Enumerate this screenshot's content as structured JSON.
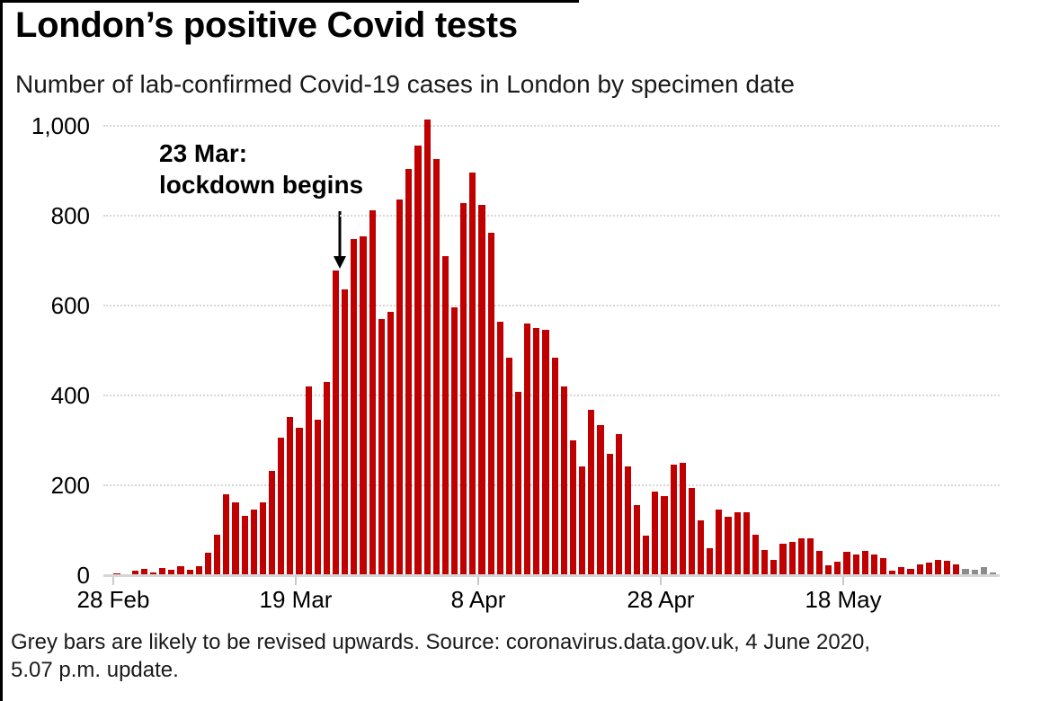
{
  "page": {
    "title": "London’s positive Covid tests",
    "subtitle": "Number of lab-confirmed Covid-19 cases in London by specimen date",
    "footer_lines": [
      "Grey bars are likely to be revised upwards. Source: coronavirus.data.gov.uk, 4 June 2020,",
      "5.07 p.m. update."
    ]
  },
  "chart_data": {
    "type": "bar",
    "title": "London’s positive Covid tests",
    "subtitle": "Number of lab-confirmed Covid-19 cases in London by specimen date",
    "x_dates": [
      "28 Feb",
      "29 Feb",
      "1 Mar",
      "2 Mar",
      "3 Mar",
      "4 Mar",
      "5 Mar",
      "6 Mar",
      "7 Mar",
      "8 Mar",
      "9 Mar",
      "10 Mar",
      "11 Mar",
      "12 Mar",
      "13 Mar",
      "14 Mar",
      "15 Mar",
      "16 Mar",
      "17 Mar",
      "18 Mar",
      "19 Mar",
      "20 Mar",
      "21 Mar",
      "22 Mar",
      "23 Mar",
      "24 Mar",
      "25 Mar",
      "26 Mar",
      "27 Mar",
      "28 Mar",
      "29 Mar",
      "30 Mar",
      "31 Mar",
      "1 Apr",
      "2 Apr",
      "3 Apr",
      "4 Apr",
      "5 Apr",
      "6 Apr",
      "7 Apr",
      "8 Apr",
      "9 Apr",
      "10 Apr",
      "11 Apr",
      "12 Apr",
      "13 Apr",
      "14 Apr",
      "15 Apr",
      "16 Apr",
      "17 Apr",
      "18 Apr",
      "19 Apr",
      "20 Apr",
      "21 Apr",
      "22 Apr",
      "23 Apr",
      "24 Apr",
      "25 Apr",
      "26 Apr",
      "27 Apr",
      "28 Apr",
      "29 Apr",
      "30 Apr",
      "1 May",
      "2 May",
      "3 May",
      "4 May",
      "5 May",
      "6 May",
      "7 May",
      "8 May",
      "9 May",
      "10 May",
      "11 May",
      "12 May",
      "13 May",
      "14 May",
      "15 May",
      "16 May",
      "17 May",
      "18 May",
      "19 May",
      "20 May",
      "21 May",
      "22 May",
      "23 May",
      "24 May",
      "25 May",
      "26 May",
      "27 May",
      "28 May",
      "29 May",
      "30 May",
      "31 May",
      "1 Jun",
      "2 Jun",
      "3 Jun"
    ],
    "values": [
      5,
      2,
      10,
      14,
      6,
      17,
      13,
      21,
      13,
      21,
      50,
      90,
      180,
      162,
      133,
      147,
      162,
      232,
      307,
      352,
      329,
      421,
      347,
      431,
      679,
      637,
      749,
      755,
      812,
      571,
      587,
      837,
      905,
      957,
      1015,
      927,
      711,
      597,
      829,
      897,
      825,
      762,
      565,
      485,
      409,
      560,
      550,
      547,
      484,
      420,
      301,
      242,
      369,
      335,
      270,
      314,
      243,
      157,
      89,
      187,
      177,
      247,
      251,
      195,
      123,
      60,
      147,
      130,
      141,
      140,
      91,
      57,
      34,
      70,
      75,
      83,
      82,
      55,
      23,
      31,
      52,
      47,
      55,
      47,
      39,
      10,
      19,
      15,
      24,
      28,
      34,
      32,
      24,
      15,
      13,
      19,
      7
    ],
    "grey_from_index": 93,
    "grey_note": "Grey bars are likely to be revised upwards",
    "bar_color": "#c00000",
    "grey_bar_color": "#8c8c8c",
    "ylim": [
      0,
      1000
    ],
    "yticks": [
      0,
      200,
      400,
      600,
      800,
      1000
    ],
    "ytick_labels": [
      "0",
      "200",
      "400",
      "600",
      "800",
      "1,000"
    ],
    "xtick_indices": [
      0,
      20,
      40,
      60,
      80
    ],
    "xtick_labels": [
      "28 Feb",
      "19 Mar",
      "8 Apr",
      "28 Apr",
      "18 May"
    ],
    "grid": "horizontal-dotted",
    "legend": "none",
    "annotation": {
      "line1": "23 Mar:",
      "line2": "lockdown begins",
      "points_to_date": "23 Mar",
      "points_to_index": 24
    },
    "source": "coronavirus.data.gov.uk, 4 June 2020, 5.07 p.m. update"
  }
}
